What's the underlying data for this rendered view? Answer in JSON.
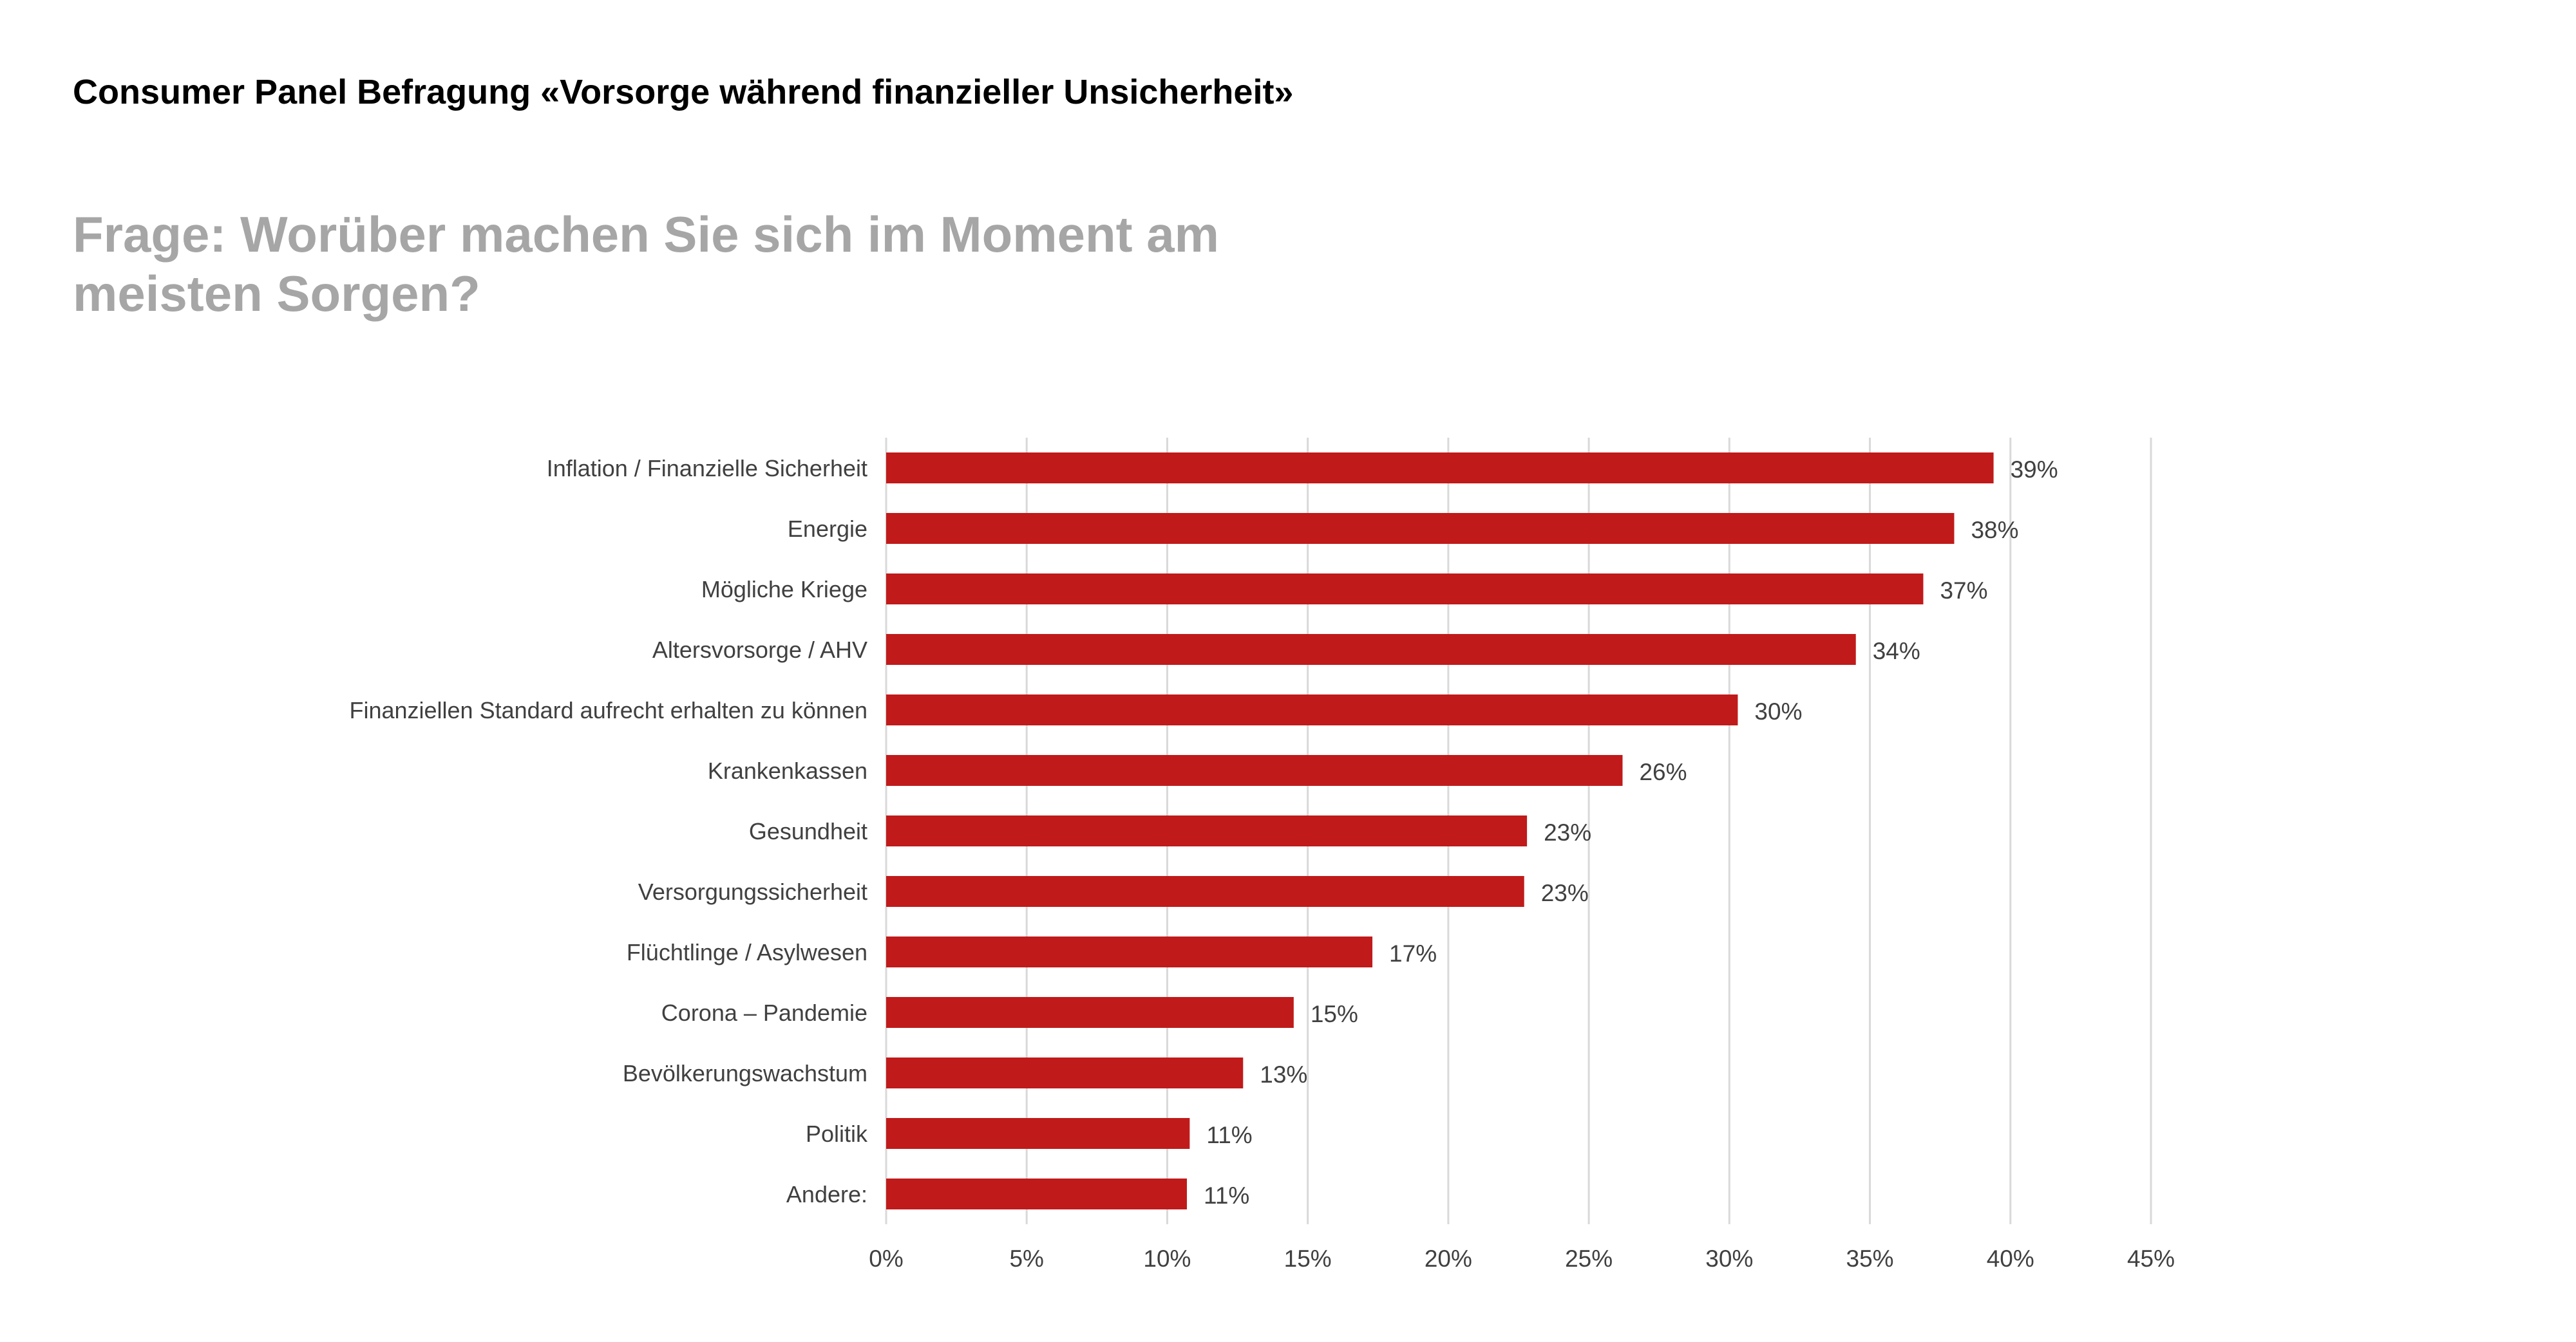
{
  "header": {
    "title": "Consumer Panel Befragung «Vorsorge während finanzieller Unsicherheit»",
    "question": "Frage: Worüber machen Sie sich im Moment am meisten Sorgen?"
  },
  "colors": {
    "bar": "#c01a1a",
    "grid": "#d9d9d9",
    "label": "#404040",
    "title": "#000000",
    "question": "#a6a6a6"
  },
  "chart_data": {
    "type": "bar",
    "orientation": "horizontal",
    "categories": [
      "Inflation / Finanzielle Sicherheit",
      "Energie",
      "Mögliche Kriege",
      "Altersvorsorge / AHV",
      "Finanziellen Standard aufrecht erhalten zu können",
      "Krankenkassen",
      "Gesundheit",
      "Versorgungssicherheit",
      "Flüchtlinge / Asylwesen",
      "Corona – Pandemie",
      "Bevölkerungswachstum",
      "Politik",
      "Andere:"
    ],
    "values": [
      39.4,
      38.0,
      36.9,
      34.5,
      30.3,
      26.2,
      22.8,
      22.7,
      17.3,
      14.5,
      12.7,
      10.8,
      10.7
    ],
    "value_labels": [
      "39%",
      "38%",
      "37%",
      "34%",
      "30%",
      "26%",
      "23%",
      "23%",
      "17%",
      "15%",
      "13%",
      "11%",
      "11%"
    ],
    "xlim": [
      0,
      45
    ],
    "xticks": [
      0,
      5,
      10,
      15,
      20,
      25,
      30,
      35,
      40,
      45
    ],
    "xtick_labels": [
      "0%",
      "5%",
      "10%",
      "15%",
      "20%",
      "25%",
      "30%",
      "35%",
      "40%",
      "45%"
    ],
    "grid": true,
    "legend": "none"
  }
}
